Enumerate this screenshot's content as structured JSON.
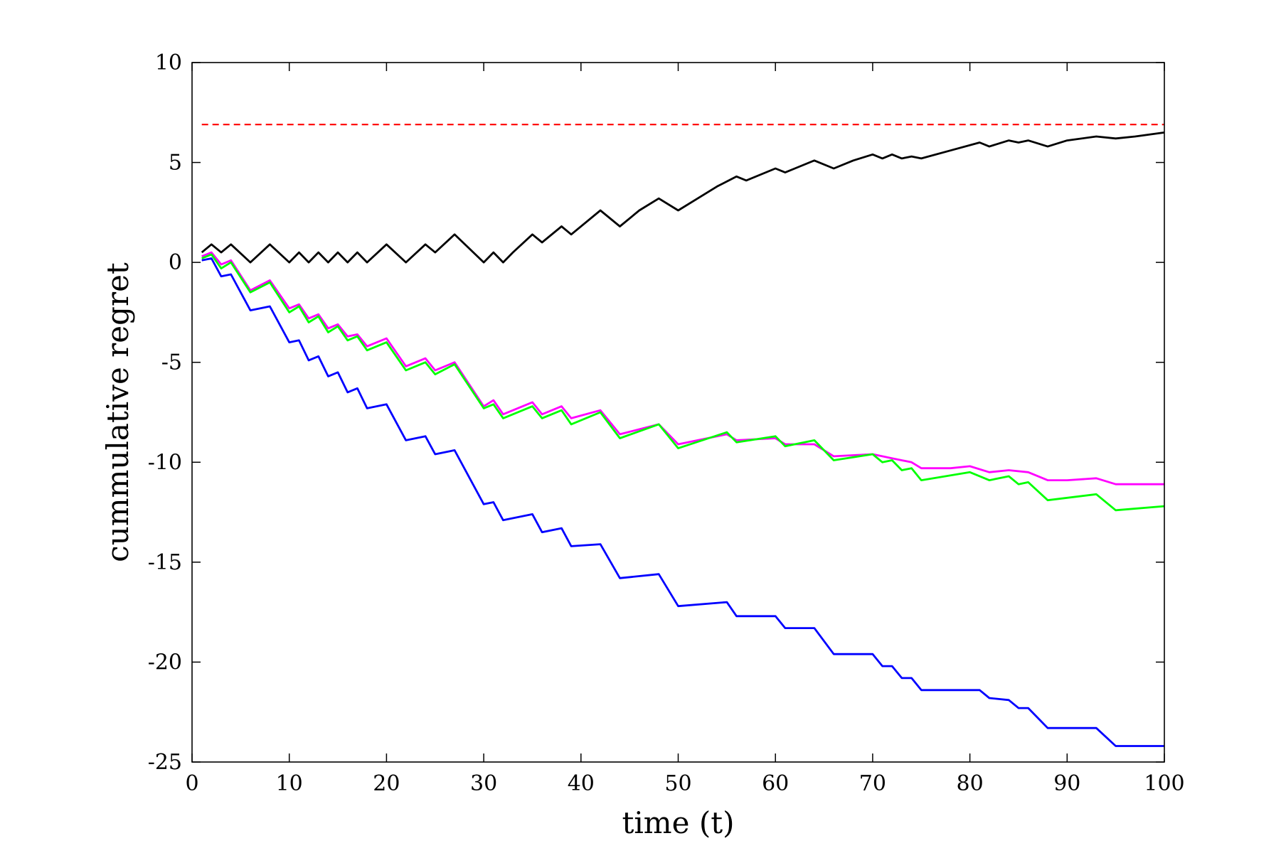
{
  "chart_data": {
    "type": "line",
    "xlabel": "time (t)",
    "ylabel": "cummulative regret",
    "xlim": [
      0,
      100
    ],
    "ylim": [
      -25,
      10
    ],
    "xticks": [
      0,
      10,
      20,
      30,
      40,
      50,
      60,
      70,
      80,
      90,
      100
    ],
    "yticks": [
      10,
      5,
      0,
      -5,
      -10,
      -15,
      -20,
      -25
    ],
    "grid": false,
    "legend": "none",
    "series": [
      {
        "color": "#ff0000",
        "style": "dashed",
        "x": [
          1,
          100
        ],
        "y": [
          6.9,
          6.9
        ]
      },
      {
        "color": "#000000",
        "style": "solid",
        "x": [
          1,
          2,
          3,
          4,
          6,
          8,
          10,
          11,
          12,
          13,
          14,
          15,
          16,
          17,
          18,
          20,
          22,
          24,
          25,
          27,
          30,
          31,
          32,
          33,
          35,
          36,
          38,
          39,
          42,
          44,
          46,
          48,
          50,
          52,
          54,
          56,
          57,
          60,
          61,
          62,
          64,
          66,
          68,
          70,
          71,
          72,
          73,
          74,
          75,
          78,
          81,
          82,
          84,
          85,
          86,
          88,
          90,
          93,
          95,
          97,
          100
        ],
        "y": [
          0.5,
          0.9,
          0.5,
          0.9,
          0.0,
          0.9,
          0.0,
          0.5,
          0.0,
          0.5,
          0.0,
          0.5,
          0.0,
          0.5,
          0.0,
          0.9,
          0.0,
          0.9,
          0.5,
          1.4,
          0.0,
          0.5,
          0.0,
          0.5,
          1.4,
          1.0,
          1.8,
          1.4,
          2.6,
          1.8,
          2.6,
          3.2,
          2.6,
          3.2,
          3.8,
          4.3,
          4.1,
          4.7,
          4.5,
          4.7,
          5.1,
          4.7,
          5.1,
          5.4,
          5.2,
          5.4,
          5.2,
          5.3,
          5.2,
          5.6,
          6.0,
          5.8,
          6.1,
          6.0,
          6.1,
          5.8,
          6.1,
          6.3,
          6.2,
          6.3,
          6.5
        ]
      },
      {
        "color": "#ff00ff",
        "style": "solid",
        "x": [
          1,
          2,
          3,
          4,
          6,
          8,
          10,
          11,
          12,
          13,
          14,
          15,
          16,
          17,
          18,
          20,
          22,
          24,
          25,
          27,
          30,
          31,
          32,
          35,
          36,
          38,
          39,
          42,
          44,
          48,
          50,
          55,
          56,
          60,
          61,
          64,
          66,
          70,
          72,
          74,
          75,
          78,
          80,
          82,
          84,
          86,
          88,
          90,
          93,
          95,
          100
        ],
        "y": [
          0.3,
          0.5,
          -0.1,
          0.1,
          -1.4,
          -0.9,
          -2.3,
          -2.1,
          -2.8,
          -2.6,
          -3.3,
          -3.1,
          -3.7,
          -3.6,
          -4.2,
          -3.8,
          -5.2,
          -4.8,
          -5.4,
          -5.0,
          -7.2,
          -6.9,
          -7.6,
          -7.0,
          -7.6,
          -7.2,
          -7.8,
          -7.4,
          -8.6,
          -8.1,
          -9.1,
          -8.6,
          -8.9,
          -8.8,
          -9.1,
          -9.1,
          -9.7,
          -9.6,
          -9.8,
          -10.0,
          -10.3,
          -10.3,
          -10.2,
          -10.5,
          -10.4,
          -10.5,
          -10.9,
          -10.9,
          -10.8,
          -11.1,
          -11.1
        ]
      },
      {
        "color": "#00ff00",
        "style": "solid",
        "x": [
          1,
          2,
          3,
          4,
          6,
          8,
          10,
          11,
          12,
          13,
          14,
          15,
          16,
          17,
          18,
          20,
          22,
          24,
          25,
          27,
          30,
          31,
          32,
          35,
          36,
          38,
          39,
          42,
          44,
          48,
          50,
          55,
          56,
          60,
          61,
          64,
          66,
          70,
          71,
          72,
          73,
          74,
          75,
          80,
          82,
          84,
          85,
          86,
          88,
          93,
          95,
          100
        ],
        "y": [
          0.2,
          0.4,
          -0.3,
          0.0,
          -1.5,
          -1.0,
          -2.5,
          -2.2,
          -3.0,
          -2.7,
          -3.5,
          -3.2,
          -3.9,
          -3.7,
          -4.4,
          -4.0,
          -5.4,
          -5.0,
          -5.6,
          -5.1,
          -7.3,
          -7.1,
          -7.8,
          -7.2,
          -7.8,
          -7.4,
          -8.1,
          -7.5,
          -8.8,
          -8.1,
          -9.3,
          -8.5,
          -9.0,
          -8.7,
          -9.2,
          -8.9,
          -9.9,
          -9.6,
          -10.0,
          -9.9,
          -10.4,
          -10.3,
          -10.9,
          -10.5,
          -10.9,
          -10.7,
          -11.1,
          -11.0,
          -11.9,
          -11.6,
          -12.4,
          -12.2
        ]
      },
      {
        "color": "#0000ff",
        "style": "solid",
        "x": [
          1,
          2,
          3,
          4,
          6,
          8,
          10,
          11,
          12,
          13,
          14,
          15,
          16,
          17,
          18,
          20,
          22,
          24,
          25,
          27,
          30,
          31,
          32,
          35,
          36,
          38,
          39,
          42,
          44,
          48,
          50,
          55,
          56,
          60,
          61,
          64,
          66,
          70,
          71,
          72,
          73,
          74,
          75,
          81,
          82,
          84,
          85,
          86,
          88,
          93,
          95,
          100
        ],
        "y": [
          0.1,
          0.2,
          -0.7,
          -0.6,
          -2.4,
          -2.2,
          -4.0,
          -3.9,
          -4.9,
          -4.7,
          -5.7,
          -5.5,
          -6.5,
          -6.3,
          -7.3,
          -7.1,
          -8.9,
          -8.7,
          -9.6,
          -9.4,
          -12.1,
          -12.0,
          -12.9,
          -12.6,
          -13.5,
          -13.3,
          -14.2,
          -14.1,
          -15.8,
          -15.6,
          -17.2,
          -17.0,
          -17.7,
          -17.7,
          -18.3,
          -18.3,
          -19.6,
          -19.6,
          -20.2,
          -20.2,
          -20.8,
          -20.8,
          -21.4,
          -21.4,
          -21.8,
          -21.9,
          -22.3,
          -22.3,
          -23.3,
          -23.3,
          -24.2,
          -24.2
        ]
      }
    ]
  }
}
